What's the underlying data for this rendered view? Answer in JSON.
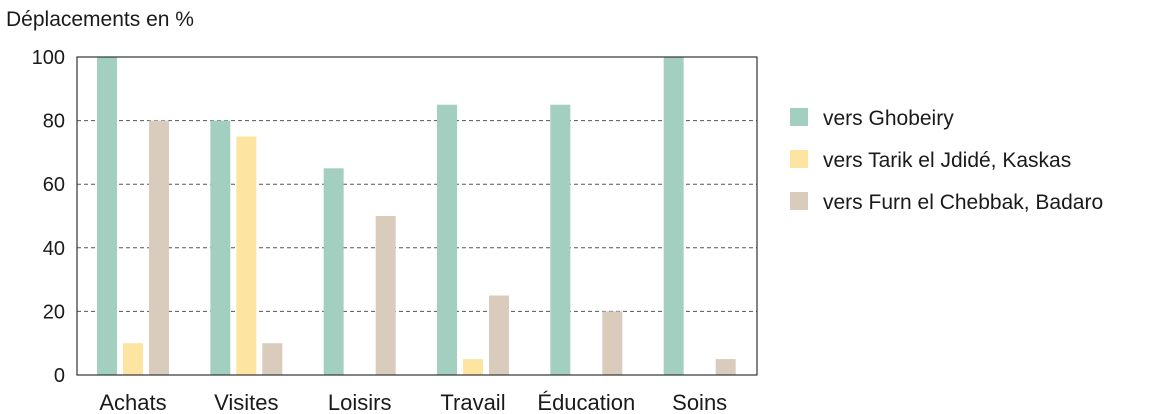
{
  "chart_data": {
    "type": "bar",
    "ylabel": "Déplacements en %",
    "xlabel": "",
    "ylim": [
      0,
      100
    ],
    "yticks": [
      0,
      20,
      40,
      60,
      80,
      100
    ],
    "grid": "horizontal dashed at 20, 40, 60, 80",
    "legend_position": "right",
    "categories": [
      "Achats",
      "Visites",
      "Loisirs",
      "Travail",
      "Éducation",
      "Soins"
    ],
    "series": [
      {
        "name": "vers Ghobeiry",
        "color": "#a3cfc0",
        "values": [
          100,
          80,
          65,
          85,
          85,
          100
        ]
      },
      {
        "name": "vers Tarik el Jdidé, Kaskas",
        "color": "#fde4a0",
        "values": [
          10,
          75,
          0,
          5,
          0,
          0
        ]
      },
      {
        "name": "vers Furn el Chebbak, Badaro",
        "color": "#d9ccbc",
        "values": [
          80,
          10,
          50,
          25,
          20,
          5
        ]
      }
    ]
  }
}
